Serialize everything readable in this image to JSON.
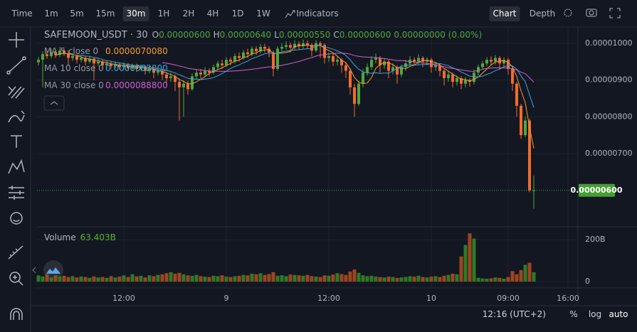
{
  "toolbar": {
    "intervals": [
      "Time",
      "1m",
      "5m",
      "15m",
      "30m",
      "1H",
      "2H",
      "4H",
      "1D",
      "1W"
    ],
    "selected": 4,
    "indicators": "Indicators",
    "views": [
      "Chart",
      "Depth"
    ],
    "selected_view": 0
  },
  "bottom_bar": {
    "time": "12:16 (UTC+2)",
    "scale_buttons": [
      "%",
      "log",
      "auto"
    ]
  },
  "chart_data": [
    {
      "type": "candlestick",
      "title": "SAFEMOON_USDT · 30",
      "ohlc": [
        {
          "key": "O",
          "value": "0.00000600"
        },
        {
          "key": "H",
          "value": "0.00000640"
        },
        {
          "key": "L",
          "value": "0.00000550"
        },
        {
          "key": "C",
          "value": "0.00000600"
        }
      ],
      "change": "0.00000000 (0.00%)",
      "indicators": [
        {
          "name": "MA 5 close 0",
          "period": 5,
          "value": "0.0000070080",
          "color": "#f59d2a"
        },
        {
          "name": "MA 10 close 0",
          "period": 10,
          "value": "0.0000082000",
          "color": "#3ba3e0"
        },
        {
          "name": "MA 30 close 0",
          "period": 30,
          "value": "0.0000088800",
          "color": "#d05fd0"
        }
      ],
      "up_color": "#4fa83a",
      "down_color": "#f26b2e",
      "grid": true,
      "last_price_label": "0.00000600",
      "last_price_color": "#43a033",
      "xlim": [
        "8 01:50",
        "10 17:10"
      ],
      "xticks": [
        {
          "value": "8 12:00",
          "label": "12:00"
        },
        {
          "value": "9 00:00",
          "label": "9"
        },
        {
          "value": "9 12:00",
          "label": "12:00"
        },
        {
          "value": "10 00:00",
          "label": "10"
        },
        {
          "value": "10 09:00",
          "label": "09:00"
        },
        {
          "value": "10 16:00",
          "label": "16:00"
        }
      ],
      "ylim": [
        5.03e-06,
        1.044e-05
      ],
      "yticks": [
        {
          "value": 1e-05,
          "label": "0.00001000"
        },
        {
          "value": 9e-06,
          "label": "0.00000900"
        },
        {
          "value": 8e-06,
          "label": "0.00000800"
        },
        {
          "value": 7e-06,
          "label": "0.00000700"
        }
      ],
      "x": [
        "8 02:00",
        "8 02:30",
        "8 03:00",
        "8 03:30",
        "8 04:00",
        "8 04:30",
        "8 05:00",
        "8 05:30",
        "8 06:00",
        "8 06:30",
        "8 07:00",
        "8 07:30",
        "8 08:00",
        "8 08:30",
        "8 09:00",
        "8 09:30",
        "8 10:00",
        "8 10:30",
        "8 11:00",
        "8 11:30",
        "8 12:00",
        "8 12:30",
        "8 13:00",
        "8 13:30",
        "8 14:00",
        "8 14:30",
        "8 15:00",
        "8 15:30",
        "8 16:00",
        "8 16:30",
        "8 17:00",
        "8 17:30",
        "8 18:00",
        "8 18:30",
        "8 19:00",
        "8 19:30",
        "8 20:00",
        "8 20:30",
        "8 21:00",
        "8 21:30",
        "8 22:00",
        "8 22:30",
        "8 23:00",
        "8 23:30",
        "9 00:00",
        "9 00:30",
        "9 01:00",
        "9 01:30",
        "9 02:00",
        "9 02:30",
        "9 03:00",
        "9 03:30",
        "9 04:00",
        "9 04:30",
        "9 05:00",
        "9 05:30",
        "9 06:00",
        "9 06:30",
        "9 07:00",
        "9 07:30",
        "9 08:00",
        "9 08:30",
        "9 09:00",
        "9 09:30",
        "9 10:00",
        "9 10:30",
        "9 11:00",
        "9 11:30",
        "9 12:00",
        "9 12:30",
        "9 13:00",
        "9 13:30",
        "9 14:00",
        "9 14:30",
        "9 15:00",
        "9 15:30",
        "9 16:00",
        "9 16:30",
        "9 17:00",
        "9 17:30",
        "9 18:00",
        "9 18:30",
        "9 19:00",
        "9 19:30",
        "9 20:00",
        "9 20:30",
        "9 21:00",
        "9 21:30",
        "9 22:00",
        "9 22:30",
        "9 23:00",
        "9 23:30",
        "10 00:00",
        "10 00:30",
        "10 01:00",
        "10 01:30",
        "10 02:00",
        "10 02:30",
        "10 03:00",
        "10 03:30",
        "10 04:00",
        "10 04:30",
        "10 05:00",
        "10 05:30",
        "10 06:00",
        "10 06:30",
        "10 07:00",
        "10 07:30",
        "10 08:00",
        "10 08:30",
        "10 09:00",
        "10 09:30",
        "10 10:00",
        "10 10:30",
        "10 11:00",
        "10 11:30",
        "10 12:00"
      ],
      "open": [
        9.48e-06,
        9.55e-06,
        9.7e-06,
        9.65e-06,
        9.75e-06,
        9.68e-06,
        9.8e-06,
        9.72e-06,
        9.6e-06,
        9.65e-06,
        9.55e-06,
        9.6e-06,
        9.5e-06,
        9.58e-06,
        9.45e-06,
        9.5e-06,
        9.4e-06,
        9.45e-06,
        9.38e-06,
        9.42e-06,
        9.35e-06,
        9.4e-06,
        9.32e-06,
        9.38e-06,
        9.3e-06,
        9.35e-06,
        9.25e-06,
        9.3e-06,
        9.2e-06,
        9.25e-06,
        9.15e-06,
        9.05e-06,
        9.1e-06,
        8.95e-06,
        8.8e-06,
        8.9e-06,
        8.75e-06,
        9.1e-06,
        9.2e-06,
        9.15e-06,
        9.25e-06,
        9.2e-06,
        9.35e-06,
        9.45e-06,
        9.4e-06,
        9.55e-06,
        9.5e-06,
        9.65e-06,
        9.6e-06,
        9.75e-06,
        9.7e-06,
        9.85e-06,
        9.78e-06,
        9.9e-06,
        9.85e-06,
        9.75e-06,
        9.3e-06,
        9.85e-06,
        9.9e-06,
        9.95e-06,
        9.88e-06,
        9.98e-06,
        9.92e-06,
        1e-05,
        9.95e-06,
        9.8e-06,
        1e-05,
        9.95e-06,
        9.6e-06,
        9.65e-06,
        9.5e-06,
        9.55e-06,
        9.4e-06,
        9.25e-06,
        8.8e-06,
        8.35e-06,
        8.9e-06,
        9.2e-06,
        9.35e-06,
        9.55e-06,
        9.6e-06,
        9.4e-06,
        9.5e-06,
        9.25e-06,
        9.35e-06,
        9.15e-06,
        9.35e-06,
        9.45e-06,
        9.55e-06,
        9.5e-06,
        9.6e-06,
        9.5e-06,
        9.55e-06,
        9.35e-06,
        9.4e-06,
        9.25e-06,
        9.05e-06,
        9.15e-06,
        8.95e-06,
        9.05e-06,
        8.9e-06,
        9e-06,
        8.95e-06,
        9.2e-06,
        9.35e-06,
        9.45e-06,
        9.55e-06,
        9.5e-06,
        9.6e-06,
        9.45e-06,
        9.55e-06,
        9.3e-06,
        8.9e-06,
        8.3e-06,
        7.5e-06,
        7.9e-06,
        6e-06
      ],
      "high": [
        9.63e-06,
        9.78e-06,
        9.78e-06,
        9.85e-06,
        9.82e-06,
        9.9e-06,
        9.85e-06,
        9.8e-06,
        9.72e-06,
        9.7e-06,
        9.68e-06,
        9.66e-06,
        9.65e-06,
        9.62e-06,
        9.58e-06,
        9.55e-06,
        9.52e-06,
        9.5e-06,
        9.5e-06,
        9.48e-06,
        9.48e-06,
        9.46e-06,
        9.45e-06,
        9.44e-06,
        9.42e-06,
        9.4e-06,
        9.38e-06,
        9.36e-06,
        9.32e-06,
        9.3e-06,
        9.22e-06,
        9.2e-06,
        9.15e-06,
        9.05e-06,
        9e-06,
        8.98e-06,
        9.18e-06,
        9.28e-06,
        9.3e-06,
        9.35e-06,
        9.32e-06,
        9.42e-06,
        9.52e-06,
        9.55e-06,
        9.62e-06,
        9.62e-06,
        9.72e-06,
        9.75e-06,
        9.82e-06,
        9.85e-06,
        9.92e-06,
        9.92e-06,
        9.98e-06,
        9.98e-06,
        9.92e-06,
        9.8e-06,
        9.92e-06,
        1e-05,
        1.005e-05,
        1.002e-05,
        1.008e-05,
        1.005e-05,
        1.01e-05,
        1.008e-05,
        1e-05,
        1.008e-05,
        1.005e-05,
        1e-05,
        9.75e-06,
        9.72e-06,
        9.65e-06,
        9.6e-06,
        9.48e-06,
        9.32e-06,
        8.9e-06,
        8.98e-06,
        9.3e-06,
        9.45e-06,
        9.65e-06,
        9.72e-06,
        9.65e-06,
        9.58e-06,
        9.55e-06,
        9.45e-06,
        9.4e-06,
        9.42e-06,
        9.55e-06,
        9.65e-06,
        9.62e-06,
        9.7e-06,
        9.65e-06,
        9.62e-06,
        9.6e-06,
        9.48e-06,
        9.45e-06,
        9.3e-06,
        9.22e-06,
        9.2e-06,
        9.12e-06,
        9.1e-06,
        9.08e-06,
        9.05e-06,
        9.28e-06,
        9.42e-06,
        9.52e-06,
        9.62e-06,
        9.65e-06,
        9.68e-06,
        9.65e-06,
        9.62e-06,
        9.6e-06,
        9.35e-06,
        8.95e-06,
        8.35e-06,
        8e-06,
        7.95e-06,
        6.4e-06
      ],
      "low": [
        9.4e-06,
        8.8e-06,
        9.58e-06,
        9.6e-06,
        9.6e-06,
        9.62e-06,
        9.65e-06,
        9.4e-06,
        9.52e-06,
        9.45e-06,
        9.48e-06,
        9.4e-06,
        9.45e-06,
        9e-06,
        9.38e-06,
        9.32e-06,
        9.34e-06,
        9.3e-06,
        9.32e-06,
        9.28e-06,
        9.28e-06,
        9.25e-06,
        9.26e-06,
        9.22e-06,
        9.24e-06,
        9.15e-06,
        9.18e-06,
        9.05e-06,
        9.12e-06,
        9e-06,
        8.85e-06,
        8.95e-06,
        8.7e-06,
        7.9e-06,
        8e-06,
        8.6e-06,
        8.7e-06,
        9e-06,
        9.05e-06,
        9.08e-06,
        9.1e-06,
        9.15e-06,
        9.28e-06,
        9.3e-06,
        9.35e-06,
        9.4e-06,
        9.45e-06,
        9.5e-06,
        9.55e-06,
        9.6e-06,
        9.65e-06,
        9.68e-06,
        9.72e-06,
        9.75e-06,
        9.62e-06,
        9.1e-06,
        9.25e-06,
        9.78e-06,
        9.82e-06,
        9.75e-06,
        9.8e-06,
        9.82e-06,
        9.85e-06,
        9.85e-06,
        9.65e-06,
        9.75e-06,
        9.6e-06,
        9.45e-06,
        9.5e-06,
        9.38e-06,
        9.4e-06,
        9.2e-06,
        9.05e-06,
        8.6e-06,
        8e-06,
        8.3e-06,
        8.8e-06,
        9.12e-06,
        9.28e-06,
        9.45e-06,
        9.2e-06,
        9.3e-06,
        9.05e-06,
        9.15e-06,
        8.9e-06,
        9.08e-06,
        9.25e-06,
        9.38e-06,
        9.4e-06,
        9.42e-06,
        9.35e-06,
        9.4e-06,
        9.2e-06,
        9.25e-06,
        9.1e-06,
        8.85e-06,
        8.95e-06,
        8.8e-06,
        8.85e-06,
        8.75e-06,
        8.8e-06,
        8.82e-06,
        8.88e-06,
        9.12e-06,
        9.28e-06,
        9.38e-06,
        9.4e-06,
        9.42e-06,
        9.3e-06,
        9.35e-06,
        9.15e-06,
        8.7e-06,
        8e-06,
        7.4e-06,
        7.45e-06,
        5.95e-06,
        5.5e-06
      ],
      "close": [
        9.55e-06,
        9.7e-06,
        9.65e-06,
        9.75e-06,
        9.68e-06,
        9.8e-06,
        9.72e-06,
        9.6e-06,
        9.65e-06,
        9.55e-06,
        9.6e-06,
        9.5e-06,
        9.58e-06,
        9.45e-06,
        9.5e-06,
        9.4e-06,
        9.45e-06,
        9.38e-06,
        9.42e-06,
        9.35e-06,
        9.4e-06,
        9.32e-06,
        9.38e-06,
        9.3e-06,
        9.35e-06,
        9.25e-06,
        9.3e-06,
        9.2e-06,
        9.25e-06,
        9.15e-06,
        9.05e-06,
        9.1e-06,
        8.95e-06,
        8.8e-06,
        8.9e-06,
        8.75e-06,
        9.1e-06,
        9.2e-06,
        9.15e-06,
        9.25e-06,
        9.2e-06,
        9.35e-06,
        9.45e-06,
        9.4e-06,
        9.55e-06,
        9.5e-06,
        9.65e-06,
        9.6e-06,
        9.75e-06,
        9.7e-06,
        9.85e-06,
        9.78e-06,
        9.9e-06,
        9.85e-06,
        9.75e-06,
        9.3e-06,
        9.85e-06,
        9.9e-06,
        9.95e-06,
        9.88e-06,
        9.98e-06,
        9.92e-06,
        1e-05,
        9.95e-06,
        9.8e-06,
        1e-05,
        9.95e-06,
        9.6e-06,
        9.65e-06,
        9.5e-06,
        9.55e-06,
        9.4e-06,
        9.25e-06,
        8.8e-06,
        8.35e-06,
        8.9e-06,
        9.2e-06,
        9.35e-06,
        9.55e-06,
        9.6e-06,
        9.4e-06,
        9.5e-06,
        9.25e-06,
        9.35e-06,
        9.15e-06,
        9.35e-06,
        9.45e-06,
        9.55e-06,
        9.5e-06,
        9.6e-06,
        9.5e-06,
        9.55e-06,
        9.35e-06,
        9.4e-06,
        9.25e-06,
        9.05e-06,
        9.15e-06,
        8.95e-06,
        9.05e-06,
        8.9e-06,
        9e-06,
        8.95e-06,
        9.2e-06,
        9.35e-06,
        9.45e-06,
        9.55e-06,
        9.5e-06,
        9.6e-06,
        9.45e-06,
        9.55e-06,
        9.3e-06,
        8.9e-06,
        8.3e-06,
        7.5e-06,
        7.9e-06,
        6e-06,
        6e-06
      ]
    },
    {
      "type": "bar",
      "title": "Volume",
      "value_label": "63.403B",
      "up_color": "#2f7a25",
      "down_color": "#9e4520",
      "ylim": [
        -30000000000.0,
        258000000000.0
      ],
      "yticks": [
        0,
        {
          "value": 200000000000.0,
          "label": "200B"
        }
      ],
      "values": [
        30000000000.0,
        25000000000.0,
        35000000000.0,
        20000000000.0,
        30000000000.0,
        25000000000.0,
        28000000000.0,
        22000000000.0,
        26000000000.0,
        20000000000.0,
        24000000000.0,
        22000000000.0,
        18000000000.0,
        25000000000.0,
        20000000000.0,
        22000000000.0,
        18000000000.0,
        26000000000.0,
        20000000000.0,
        24000000000.0,
        30000000000.0,
        22000000000.0,
        35000000000.0,
        25000000000.0,
        28000000000.0,
        20000000000.0,
        30000000000.0,
        26000000000.0,
        32000000000.0,
        35000000000.0,
        40000000000.0,
        45000000000.0,
        38000000000.0,
        42000000000.0,
        35000000000.0,
        30000000000.0,
        28000000000.0,
        32000000000.0,
        26000000000.0,
        24000000000.0,
        22000000000.0,
        28000000000.0,
        26000000000.0,
        30000000000.0,
        24000000000.0,
        22000000000.0,
        26000000000.0,
        28000000000.0,
        32000000000.0,
        30000000000.0,
        38000000000.0,
        35000000000.0,
        40000000000.0,
        32000000000.0,
        36000000000.0,
        45000000000.0,
        28000000000.0,
        30000000000.0,
        26000000000.0,
        34000000000.0,
        32000000000.0,
        30000000000.0,
        28000000000.0,
        32000000000.0,
        26000000000.0,
        24000000000.0,
        22000000000.0,
        30000000000.0,
        28000000000.0,
        34000000000.0,
        40000000000.0,
        36000000000.0,
        32000000000.0,
        48000000000.0,
        58000000000.0,
        42000000000.0,
        30000000000.0,
        26000000000.0,
        28000000000.0,
        24000000000.0,
        22000000000.0,
        20000000000.0,
        24000000000.0,
        22000000000.0,
        18000000000.0,
        20000000000.0,
        22000000000.0,
        26000000000.0,
        24000000000.0,
        28000000000.0,
        22000000000.0,
        20000000000.0,
        24000000000.0,
        26000000000.0,
        22000000000.0,
        28000000000.0,
        32000000000.0,
        38000000000.0,
        35000000000.0,
        120000000000.0,
        175000000000.0,
        230000000000.0,
        205000000000.0,
        18000000000.0,
        15000000000.0,
        14000000000.0,
        16000000000.0,
        20000000000.0,
        18000000000.0,
        14000000000.0,
        22000000000.0,
        50000000000.0,
        35000000000.0,
        55000000000.0,
        80000000000.0,
        90000000000.0,
        45000000000.0
      ]
    }
  ]
}
